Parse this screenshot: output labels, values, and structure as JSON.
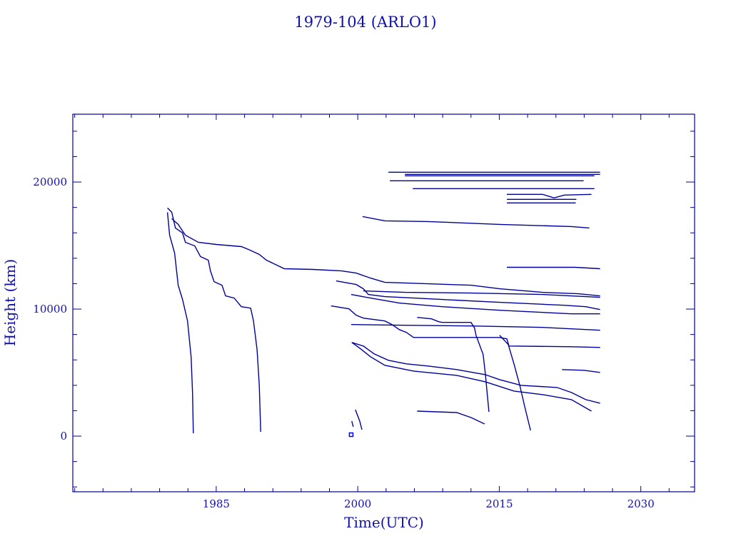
{
  "chart_data": {
    "type": "line",
    "title": "1979-104 (ARLO1)",
    "xlabel": "Time(UTC)",
    "ylabel": "Height (km)",
    "xlim": [
      1969.8,
      2035.7
    ],
    "ylim": [
      -4380,
      25340
    ],
    "x_ticks": [
      1985,
      2000,
      2015,
      2030
    ],
    "y_ticks": [
      0,
      10000,
      20000
    ],
    "x_minor_step": 3,
    "y_minor_step": 2000,
    "grid": false,
    "legend": "none",
    "color": "#00009a",
    "series": [
      {
        "points": [
          [
            1979.83,
            17622
          ],
          [
            1980.06,
            15820
          ],
          [
            1980.59,
            14413
          ],
          [
            1980.97,
            11879
          ],
          [
            1981.43,
            10753
          ],
          [
            1981.96,
            9064
          ],
          [
            1982.34,
            6249
          ],
          [
            1982.49,
            3434
          ],
          [
            1982.57,
            225
          ]
        ]
      },
      {
        "points": [
          [
            1979.83,
            17960
          ],
          [
            1980.29,
            17622
          ],
          [
            1980.67,
            16383
          ],
          [
            1981.43,
            15989
          ],
          [
            1981.73,
            15257
          ],
          [
            1982.72,
            14976
          ],
          [
            1983.33,
            14131
          ],
          [
            1984.16,
            13850
          ],
          [
            1984.39,
            13005
          ],
          [
            1984.77,
            12161
          ],
          [
            1985.61,
            11879
          ],
          [
            1985.99,
            11035
          ],
          [
            1986.9,
            10866
          ],
          [
            1987.66,
            10190
          ],
          [
            1988.65,
            10078
          ],
          [
            1988.95,
            9064
          ],
          [
            1989.33,
            6812
          ],
          [
            1989.56,
            3997
          ],
          [
            1989.71,
            338
          ]
        ]
      },
      {
        "points": [
          [
            1980.29,
            17115
          ],
          [
            1980.97,
            16665
          ],
          [
            1981.73,
            15820
          ],
          [
            1983.1,
            15257
          ],
          [
            1985.0,
            15088
          ],
          [
            1987.66,
            14920
          ],
          [
            1988.42,
            14694
          ],
          [
            1989.56,
            14300
          ],
          [
            1990.32,
            13850
          ],
          [
            1992.22,
            13174
          ],
          [
            1995.27,
            13118
          ],
          [
            1998.31,
            13005
          ],
          [
            1999.83,
            12836
          ],
          [
            2001.35,
            12442
          ],
          [
            2002.87,
            12105
          ],
          [
            2007.43,
            11992
          ],
          [
            2011.99,
            11879
          ],
          [
            2015.04,
            11598
          ],
          [
            2019.6,
            11316
          ],
          [
            2023.4,
            11204
          ],
          [
            2025.68,
            11035
          ]
        ]
      },
      {
        "points": [
          [
            1997.7,
            12217
          ],
          [
            1999.83,
            11936
          ],
          [
            2000.59,
            11598
          ],
          [
            2001.12,
            11147
          ],
          [
            2002.87,
            10979
          ],
          [
            2008.95,
            10753
          ],
          [
            2015.04,
            10528
          ],
          [
            2021.88,
            10303
          ],
          [
            2024.16,
            10190
          ],
          [
            2025.68,
            9965
          ]
        ]
      },
      {
        "points": [
          [
            1999.3,
            11147
          ],
          [
            2001.35,
            10866
          ],
          [
            2004.39,
            10472
          ],
          [
            2008.95,
            10190
          ],
          [
            2015.04,
            9909
          ],
          [
            2022.64,
            9627
          ],
          [
            2025.68,
            9627
          ]
        ]
      },
      {
        "points": [
          [
            2000.59,
            11429
          ],
          [
            2005.0,
            11316
          ],
          [
            2012.0,
            11260
          ],
          [
            2019.6,
            11147
          ],
          [
            2025.68,
            10922
          ]
        ]
      },
      {
        "points": [
          [
            1997.17,
            10247
          ],
          [
            1999.07,
            10021
          ],
          [
            1999.83,
            9515
          ],
          [
            2000.59,
            9290
          ],
          [
            2002.87,
            9064
          ],
          [
            2003.63,
            8783
          ],
          [
            2004.39,
            8389
          ],
          [
            2005.15,
            8164
          ],
          [
            2005.91,
            7769
          ],
          [
            2007.43,
            7769
          ],
          [
            2015.04,
            7769
          ],
          [
            2015.8,
            7657
          ],
          [
            2016.03,
            7094
          ],
          [
            2022.64,
            7038
          ],
          [
            2025.68,
            6981
          ]
        ]
      },
      {
        "points": [
          [
            1999.3,
            8783
          ],
          [
            2005.0,
            8726
          ],
          [
            2012.0,
            8670
          ],
          [
            2019.6,
            8557
          ],
          [
            2025.68,
            8332
          ]
        ]
      },
      {
        "points": [
          [
            2006.29,
            9346
          ],
          [
            2007.81,
            9233
          ],
          [
            2008.57,
            9008
          ],
          [
            2008.95,
            8952
          ],
          [
            2012.0,
            8952
          ],
          [
            2012.38,
            8501
          ],
          [
            2012.53,
            7938
          ],
          [
            2013.29,
            6418
          ],
          [
            2013.52,
            4954
          ],
          [
            2013.9,
            1914
          ]
        ]
      },
      {
        "points": [
          [
            2015.04,
            7938
          ],
          [
            2015.95,
            7206
          ],
          [
            2016.56,
            5686
          ],
          [
            2017.17,
            3997
          ],
          [
            2017.7,
            2308
          ],
          [
            2018.31,
            450
          ]
        ]
      },
      {
        "points": [
          [
            1999.37,
            7375
          ],
          [
            2000.59,
            7094
          ],
          [
            2001.73,
            6475
          ],
          [
            2003.25,
            5968
          ],
          [
            2005.15,
            5686
          ],
          [
            2007.43,
            5517
          ],
          [
            2010.48,
            5236
          ],
          [
            2013.52,
            4842
          ],
          [
            2015.04,
            4448
          ],
          [
            2017.32,
            3997
          ],
          [
            2021.12,
            3828
          ],
          [
            2022.64,
            3434
          ],
          [
            2024.16,
            2871
          ],
          [
            2025.68,
            2590
          ]
        ]
      },
      {
        "points": [
          [
            1999.37,
            7375
          ],
          [
            2000.21,
            6925
          ],
          [
            2001.35,
            6249
          ],
          [
            2002.87,
            5574
          ],
          [
            2005.91,
            5123
          ],
          [
            2010.48,
            4786
          ],
          [
            2013.52,
            4279
          ],
          [
            2016.56,
            3547
          ],
          [
            2019.6,
            3265
          ],
          [
            2022.64,
            2871
          ],
          [
            2024.77,
            1970
          ]
        ]
      },
      {
        "points": [
          [
            2006.29,
            1970
          ],
          [
            2010.48,
            1858
          ],
          [
            2012.0,
            1464
          ],
          [
            2013.44,
            957
          ]
        ]
      },
      {
        "points": [
          [
            1999.75,
            2083
          ],
          [
            2000.21,
            1182
          ],
          [
            2000.44,
            507
          ]
        ]
      },
      {
        "points": [
          [
            1999.37,
            1182
          ],
          [
            1999.52,
            732
          ]
        ]
      },
      {
        "points": [
          [
            2021.65,
            5236
          ],
          [
            2023.94,
            5180
          ],
          [
            2025.68,
            5011
          ]
        ]
      },
      {
        "points": [
          [
            2015.8,
            13287
          ],
          [
            2023.02,
            13287
          ],
          [
            2025.68,
            13174
          ]
        ]
      },
      {
        "points": [
          [
            2000.51,
            17284
          ],
          [
            2002.87,
            16946
          ],
          [
            2007.43,
            16890
          ],
          [
            2015.04,
            16665
          ],
          [
            2022.64,
            16496
          ],
          [
            2024.54,
            16383
          ]
        ]
      },
      {
        "points": [
          [
            2003.25,
            20775
          ],
          [
            2025.68,
            20775
          ]
        ]
      },
      {
        "points": [
          [
            2005.0,
            20606
          ],
          [
            2025.68,
            20606
          ]
        ]
      },
      {
        "points": [
          [
            2005.0,
            20493
          ],
          [
            2025.08,
            20493
          ]
        ]
      },
      {
        "points": [
          [
            2003.4,
            20099
          ],
          [
            2023.94,
            20099
          ]
        ]
      },
      {
        "points": [
          [
            2005.84,
            19480
          ],
          [
            2025.08,
            19480
          ]
        ]
      },
      {
        "points": [
          [
            2015.8,
            19029
          ],
          [
            2019.6,
            19029
          ],
          [
            2020.8,
            18748
          ],
          [
            2021.9,
            18974
          ],
          [
            2024.77,
            19029
          ]
        ]
      },
      {
        "points": [
          [
            2015.8,
            18635
          ],
          [
            2023.17,
            18635
          ]
        ]
      },
      {
        "points": [
          [
            2015.8,
            18354
          ],
          [
            2023.1,
            18354
          ]
        ]
      }
    ],
    "markers": [
      [
        1999.3,
        113
      ]
    ]
  }
}
